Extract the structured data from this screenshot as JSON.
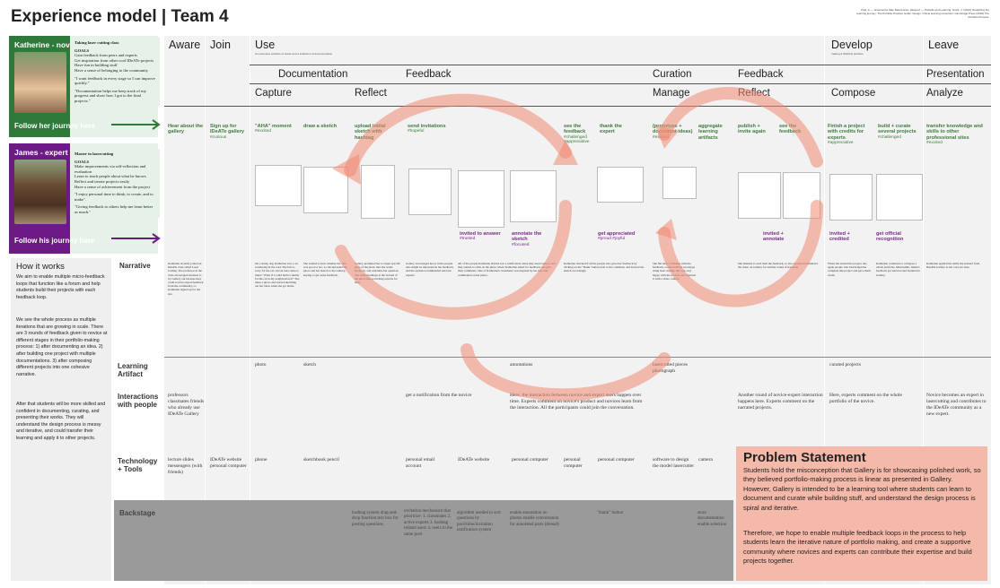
{
  "title": "Experience model | Team 4",
  "references": "Paul, A. — Experience Map References; Vasquez — Portfolio and Learning; Grant, J. (2019) Visualizing the learning journey; The Portfolio Practice Guide; Design, Online learning resources; Cambridge Press (2018) The Portfolio Process.",
  "personas": [
    {
      "label": "Katherine - novice",
      "follow": "Follow her journey here",
      "color": "#2f7a3a",
      "text_lines": [
        "Taking laser cutting class",
        "GOALS",
        "Gain feedback from peers and experts",
        "Get inspiration from other cool IDeATe projects",
        "Have fun in building stuff",
        "Have a sense of belonging to the community",
        "\"I want feedback in every stage so I can improve quickly.\"",
        "\"Documentation helps me keep track of my progress and show how I got to the final projects.\""
      ]
    },
    {
      "label": "James - expert",
      "follow": "Follow his journey here",
      "color": "#6b1a86",
      "text_lines": [
        "Master in lasercutting",
        "GOALS",
        "Make improvements via self-reflection and evaluation",
        "Learn to teach people about what he knows",
        "Reflect and iterate projects easily",
        "Have a sense of achievement from the project",
        "\"I enjoy personal time to think, to create, and to make\".",
        "\"Giving feedback to others help me learn better as much.\""
      ]
    }
  ],
  "how_it_works": {
    "title": "How it works",
    "paragraphs": [
      "We aim to enable multiple micro-feedback loops that function like a forum and help students build their projects with each feedback loop.",
      "We see the whole process as multiple iterations that are growing in scale. There are 3 rounds of feedback given to novice at different stages in their portfolio-making process: 1) after documenting an idea. 2) after building one project with multiple documentations. 3) after composing different projects into one cohesive narrative.",
      "After that students will be more skilled and confident in documenting, curating, and presenting their works. They will understand the design process is messy and iterative, and could transfer their learning and apply it to other projects."
    ]
  },
  "stages": [
    "Aware",
    "Join",
    "Use",
    "Develop",
    "Leave"
  ],
  "use_note": "An extensive portfolio of works and a collection of documentation",
  "develop_note": "making a WHOLE portfolio",
  "phases": [
    "Documentation",
    "Feedback",
    "Curation",
    "Feedback",
    "Presentation"
  ],
  "subphases": [
    "Capture",
    "Reflect",
    "Manage",
    "Reflect",
    "Compose",
    "Analyze"
  ],
  "novice_actions": [
    {
      "text": "Hear about the gallery",
      "emotion": ""
    },
    {
      "text": "Sign up for IDeATe gallery",
      "emotion": "#curious"
    },
    {
      "text": "\"AHA\" moment",
      "emotion": "#excited"
    },
    {
      "text": "draw a sketch",
      "emotion": ""
    },
    {
      "text": "upload initial sketch with hashtag",
      "emotion": ""
    },
    {
      "text": "send invitations",
      "emotion": "#hopeful"
    },
    {
      "text": "see the feedback",
      "emotion": "#challenged #appreciative"
    },
    {
      "text": "thank the expert",
      "emotion": ""
    },
    {
      "text": "(prototype + document ideas)",
      "emotion": "#excited"
    },
    {
      "text": "aggregate learning artifacts",
      "emotion": ""
    },
    {
      "text": "publish + invite again",
      "emotion": ""
    },
    {
      "text": "see the feedback",
      "emotion": ""
    },
    {
      "text": "Finish a project with credits for experts",
      "emotion": "#appreciative"
    },
    {
      "text": "build + curate several projects",
      "emotion": "#challenged"
    },
    {
      "text": "transfer knowledge and skills to other professional sites",
      "emotion": "#excited"
    }
  ],
  "expert_actions": [
    {
      "text": "invited to answer",
      "emotion": "#trusted"
    },
    {
      "text": "annotate the sketch",
      "emotion": "#focused"
    },
    {
      "text": "get appreciated",
      "emotion": "#proud #joyful"
    },
    {
      "text": "invited + annotate",
      "emotion": ""
    },
    {
      "text": "invited + credited",
      "emotion": ""
    },
    {
      "text": "get official recognition",
      "emotion": ""
    }
  ],
  "rows": {
    "narrative": "Narrative",
    "artifact": "Learning Artifact",
    "interactions": "Interactions with people",
    "tools": "Technology + Tools",
    "backstage": "Backstage"
  },
  "narrative_cells": [
    "Katherine recently joined an IDeATe class called Laser Cutting. The professor in the class encouraged students to try Gallery out because they could receive expert feedback from the community, so Katherine signed up for the site.",
    "On a sunny day, Katherine saw a cat wandering in the road. She felt so sorry for the cat, and an idea came to mind: \"What if I could build a shelter for the cat in my neighborhood?\" She takes a photo and started sketching out her ideas when she got home.",
    "She wanted to hear whether her idea was good or not, so she uploaded the photo and her sketch to the Gallery, hoping to get some feedback.",
    "Gallery prompted her to target specific parts of the photo that she wants feedback, and articulate her question. She added hashtags at the bottom of the photo before inviting experts for help.",
    "Gallery encouraged her to invite people who might be interested in the feedback, and the system recommended relevant experts.",
    "All of the people Katherine invited saw a notification when they used Gallery, and they started to click on the photo where Katherine asked for feedback and give their comments. One of Katherine's classmates was inspired by her idea and commented on her photo.",
    "Katherine checked if all the people who gave her feedback by clicking on the \"thank\" button next to the comment, and noticed her sketch accordingly.",
    "She felt more confident with the feedback, so she built her prototype using laser cutting. She was very happy with the process and captured it with a video camera.",
    "She listened to each item the feedback, so she curated and finalized the video on Gallery for another round of feedback.",
    "When she started the project, she again people who had helped her complete this project and gave them credit.",
    "Katherine continued to compose a whole portfolio. Meanwhile, James's feedback got selected and featured in Gallery.",
    "Katherine applied the skills she learned from IDeATe Gallery to her own job sites."
  ],
  "artifact_cells": [
    "photo",
    "sketch",
    "annotations",
    "lasercutted pieces photograph",
    "curated projects"
  ],
  "interaction_cells": [
    "professors classmates friends who already use IDeATe Gallery",
    "get a notification from the novice",
    "Here, the interaction between novice and expert users happen over time. Experts comment on novice's product and novices learn from the interaction. All the participants could join the conversation.",
    "Another round of novice-expert interaction happens here. Experts comment on the narrated projects.",
    "Here, experts comment on the whole portfolio of the novice.",
    "Novice becomes an expert in lasercutting and contributes to the IDeATe community as a new expert."
  ],
  "tool_cells": [
    "lecture slides messengers (with friends)",
    "IDeATe website personal computer",
    "phone",
    "sketchbook pencil",
    "personal email account",
    "IDeATe website",
    "personal computer",
    "personal computer",
    "personal computer",
    "software to design the model lasercutter",
    "camera"
  ],
  "backstage_cells": [
    "hashtag system drag-and-drop function text box for posting questions",
    "invitation mechanism that prioritize: 1. classmates 2. active experts 3. hashtag related users 4. users in the same pool",
    "algorithm needed to sort questions by pool/time/invitation notification system",
    "enable annotation on photos enable conversation for annotated parts (thread)",
    "\"thank\" button",
    "store documentation enable selection"
  ],
  "problem": {
    "title": "Problem Statement",
    "p1": "Students hold the misconception that Gallery is for showcasing polished work, so they believed portfolio-making process is linear as presented in Gallery. However, Gallery is intended to be a learning tool where students can learn to document and curate while building stuff, and understand the design process is spiral and iterative.",
    "p2": "Therefore, we hope to enable multiple feedback loops in the process to help students learn the iterative nature of portfolio making, and create a supportive community where novices and experts can contribute their expertise and build projects together."
  },
  "colors": {
    "green": "#2f7a3a",
    "purple": "#6b1a86",
    "salmon": "#f5b9a9",
    "loop": "#f08a72"
  },
  "icons": [
    "avatar-katherine",
    "avatar-james",
    "arrow-right-icon",
    "feedback-loop-arrow"
  ]
}
